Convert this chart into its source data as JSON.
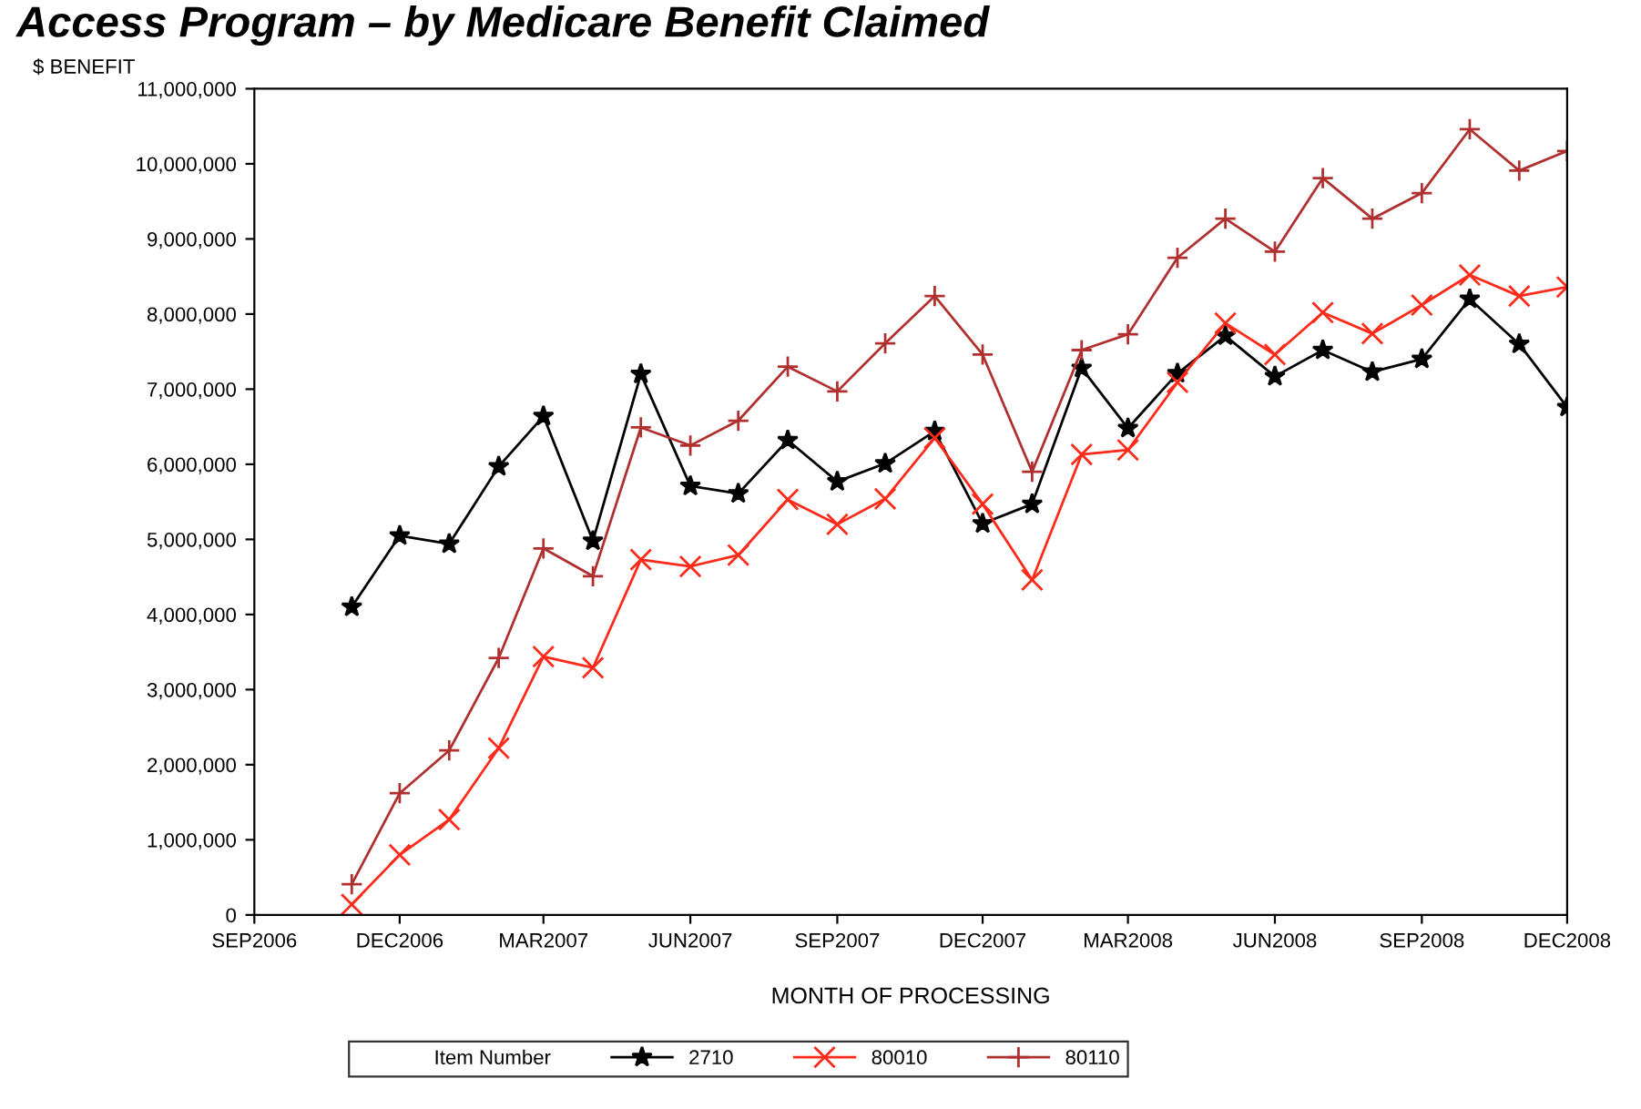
{
  "chart_data": {
    "type": "line",
    "title": "Access Program – by Medicare Benefit Claimed",
    "xlabel": "MONTH OF PROCESSING",
    "ylabel": "$ BENEFIT",
    "legend_title": "Item Number",
    "legend": "bottom",
    "x": [
      "2006-11",
      "2006-12",
      "2007-01",
      "2007-02",
      "2007-03",
      "2007-04",
      "2007-05",
      "2007-06",
      "2007-07",
      "2007-08",
      "2007-09",
      "2007-10",
      "2007-11",
      "2007-12",
      "2008-01",
      "2008-02",
      "2008-03",
      "2008-04",
      "2008-05",
      "2008-06",
      "2008-07",
      "2008-08",
      "2008-09",
      "2008-10",
      "2008-11",
      "2008-12"
    ],
    "series": [
      {
        "name": "2710",
        "color": "#000000",
        "marker": "star",
        "values": [
          4100000,
          5050000,
          4940000,
          5970000,
          6640000,
          4980000,
          7200000,
          5710000,
          5610000,
          6320000,
          5770000,
          6010000,
          6440000,
          5210000,
          5470000,
          7280000,
          6480000,
          7210000,
          7710000,
          7170000,
          7520000,
          7230000,
          7400000,
          8200000,
          7600000,
          6760000
        ]
      },
      {
        "name": "80010",
        "color": "#ff2a1a",
        "marker": "cross",
        "values": [
          140000,
          800000,
          1270000,
          2220000,
          3440000,
          3290000,
          4730000,
          4640000,
          4790000,
          5530000,
          5200000,
          5540000,
          6350000,
          5470000,
          4460000,
          6130000,
          6190000,
          7090000,
          7880000,
          7460000,
          8020000,
          7740000,
          8120000,
          8520000,
          8240000,
          8360000
        ]
      },
      {
        "name": "80110",
        "color": "#b03030",
        "marker": "plus",
        "values": [
          410000,
          1620000,
          2190000,
          3420000,
          4880000,
          4510000,
          6490000,
          6250000,
          6580000,
          7300000,
          6970000,
          7610000,
          8240000,
          7460000,
          5900000,
          7520000,
          7730000,
          8750000,
          9270000,
          8830000,
          9810000,
          9270000,
          9610000,
          10460000,
          9910000,
          10170000
        ]
      }
    ],
    "xlim": [
      "2006-09",
      "2008-12"
    ],
    "xticks": [
      {
        "value": "2006-09",
        "label": "SEP2006"
      },
      {
        "value": "2006-12",
        "label": "DEC2006"
      },
      {
        "value": "2007-03",
        "label": "MAR2007"
      },
      {
        "value": "2007-06",
        "label": "JUN2007"
      },
      {
        "value": "2007-09",
        "label": "SEP2007"
      },
      {
        "value": "2007-12",
        "label": "DEC2007"
      },
      {
        "value": "2008-03",
        "label": "MAR2008"
      },
      {
        "value": "2008-06",
        "label": "JUN2008"
      },
      {
        "value": "2008-09",
        "label": "SEP2008"
      },
      {
        "value": "2008-12",
        "label": "DEC2008"
      }
    ],
    "ylim": [
      0,
      11000000
    ],
    "yticks": [
      {
        "value": 0,
        "label": "0"
      },
      {
        "value": 1000000,
        "label": "1,000,000"
      },
      {
        "value": 2000000,
        "label": "2,000,000"
      },
      {
        "value": 3000000,
        "label": "3,000,000"
      },
      {
        "value": 4000000,
        "label": "4,000,000"
      },
      {
        "value": 5000000,
        "label": "5,000,000"
      },
      {
        "value": 6000000,
        "label": "6,000,000"
      },
      {
        "value": 7000000,
        "label": "7,000,000"
      },
      {
        "value": 8000000,
        "label": "8,000,000"
      },
      {
        "value": 9000000,
        "label": "9,000,000"
      },
      {
        "value": 10000000,
        "label": "10,000,000"
      },
      {
        "value": 11000000,
        "label": "11,000,000"
      }
    ],
    "grid": false
  }
}
